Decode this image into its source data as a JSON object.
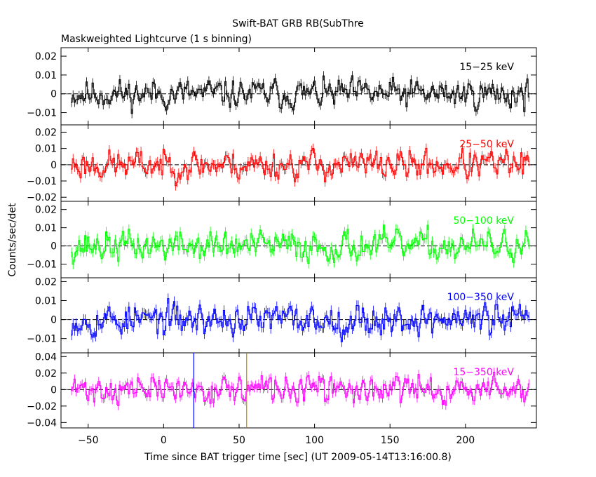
{
  "chart_data": {
    "type": "line",
    "title": "Swift-BAT GRB RB(SubThre",
    "subtitle": "Maskweighted Lightcurve (1 s binning)",
    "xlabel": "Time since BAT trigger time [sec] (UT 2009-05-14T13:16:00.8)",
    "ylabel": "Counts/sec/det",
    "xlim": [
      -68,
      247
    ],
    "data_range": [
      -61,
      242
    ],
    "x_ticks": [
      -50,
      0,
      50,
      100,
      150,
      200
    ],
    "x_tick_labels": [
      "−50",
      "0",
      "50",
      "100",
      "150",
      "200"
    ],
    "markers": [
      {
        "x": 20,
        "color": "#0000ff"
      },
      {
        "x": 55,
        "color": "#d08000"
      }
    ],
    "panels": [
      {
        "label": "15−25 keV",
        "color": "#000000",
        "ylim": [
          -0.0165,
          0.0245
        ],
        "y_ticks": [
          -0.01,
          0,
          0.01,
          0.02
        ],
        "y_tick_labels": [
          "−0.01",
          "0",
          "0.01",
          "0.02"
        ],
        "noise_amplitude": 0.0055,
        "seed": 11
      },
      {
        "label": "25−50 keV",
        "color": "#ff0000",
        "ylim": [
          -0.0225,
          0.0245
        ],
        "y_ticks": [
          -0.02,
          -0.01,
          0,
          0.01,
          0.02
        ],
        "y_tick_labels": [
          "−0.02",
          "−0.01",
          "0",
          "0.01",
          "0.02"
        ],
        "noise_amplitude": 0.0065,
        "seed": 23
      },
      {
        "label": "50−100 keV",
        "color": "#00ff00",
        "ylim": [
          -0.0175,
          0.0245
        ],
        "y_ticks": [
          -0.01,
          0,
          0.01,
          0.02
        ],
        "y_tick_labels": [
          "−0.01",
          "0",
          "0.01",
          "0.02"
        ],
        "noise_amplitude": 0.006,
        "seed": 37
      },
      {
        "label": "100−350 keV",
        "color": "#0000ff",
        "ylim": [
          -0.0175,
          0.022
        ],
        "y_ticks": [
          -0.01,
          0,
          0.01,
          0.02
        ],
        "y_tick_labels": [
          "−0.01",
          "0",
          "0.01",
          "0.02"
        ],
        "noise_amplitude": 0.006,
        "seed": 53
      },
      {
        "label": "15−350 keV",
        "color": "#ff00ff",
        "ylim": [
          -0.0465,
          0.0445
        ],
        "y_ticks": [
          -0.04,
          -0.02,
          0,
          0.02,
          0.04
        ],
        "y_tick_labels": [
          "−0.04",
          "−0.02",
          "0",
          "0.02",
          "0.04"
        ],
        "noise_amplitude": 0.012,
        "seed": 71
      }
    ]
  }
}
